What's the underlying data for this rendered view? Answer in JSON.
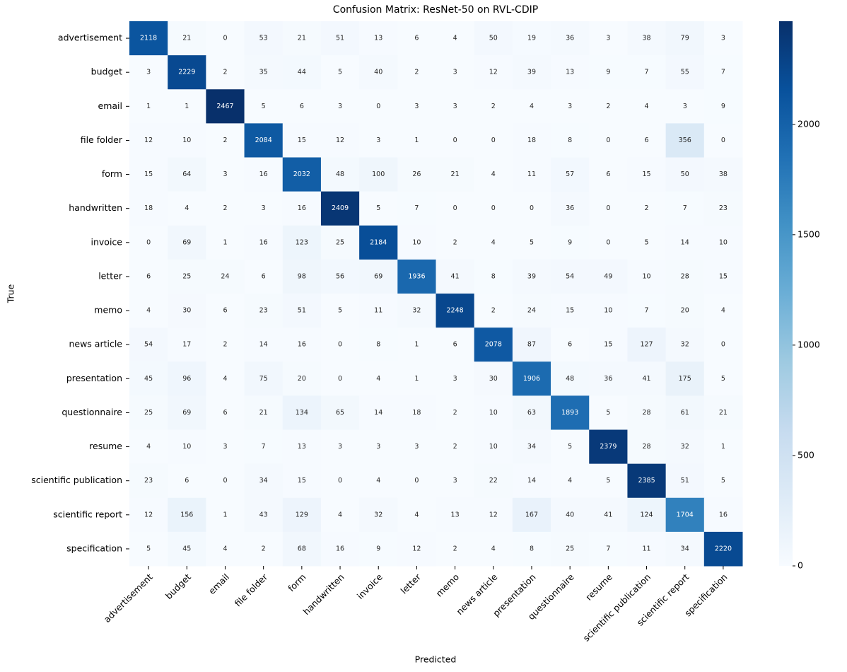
{
  "chart_data": {
    "type": "heatmap",
    "title": "Confusion Matrix: ResNet-50 on RVL-CDIP",
    "x_label": "Predicted",
    "y_label": "True",
    "categories": [
      "advertisement",
      "budget",
      "email",
      "file folder",
      "form",
      "handwritten",
      "invoice",
      "letter",
      "memo",
      "news article",
      "presentation",
      "questionnaire",
      "resume",
      "scientific publication",
      "scientific report",
      "specification"
    ],
    "values": [
      [
        2118,
        21,
        0,
        53,
        21,
        51,
        13,
        6,
        4,
        50,
        19,
        36,
        3,
        38,
        79,
        3
      ],
      [
        3,
        2229,
        2,
        35,
        44,
        5,
        40,
        2,
        3,
        12,
        39,
        13,
        9,
        7,
        55,
        7
      ],
      [
        1,
        1,
        2467,
        5,
        6,
        3,
        0,
        3,
        3,
        2,
        4,
        3,
        2,
        4,
        3,
        9
      ],
      [
        12,
        10,
        2,
        2084,
        15,
        12,
        3,
        1,
        0,
        0,
        18,
        8,
        0,
        6,
        356,
        0
      ],
      [
        15,
        64,
        3,
        16,
        2032,
        48,
        100,
        26,
        21,
        4,
        11,
        57,
        6,
        15,
        50,
        38
      ],
      [
        18,
        4,
        2,
        3,
        16,
        2409,
        5,
        7,
        0,
        0,
        0,
        36,
        0,
        2,
        7,
        23
      ],
      [
        0,
        69,
        1,
        16,
        123,
        25,
        2184,
        10,
        2,
        4,
        5,
        9,
        0,
        5,
        14,
        10
      ],
      [
        6,
        25,
        24,
        6,
        98,
        56,
        69,
        1936,
        41,
        8,
        39,
        54,
        49,
        10,
        28,
        15
      ],
      [
        4,
        30,
        6,
        23,
        51,
        5,
        11,
        32,
        2248,
        2,
        24,
        15,
        10,
        7,
        20,
        4
      ],
      [
        54,
        17,
        2,
        14,
        16,
        0,
        8,
        1,
        6,
        2078,
        87,
        6,
        15,
        127,
        32,
        0
      ],
      [
        45,
        96,
        4,
        75,
        20,
        0,
        4,
        1,
        3,
        30,
        1906,
        48,
        36,
        41,
        175,
        5
      ],
      [
        25,
        69,
        6,
        21,
        134,
        65,
        14,
        18,
        2,
        10,
        63,
        1893,
        5,
        28,
        61,
        21
      ],
      [
        4,
        10,
        3,
        7,
        13,
        3,
        3,
        3,
        2,
        10,
        34,
        5,
        2379,
        28,
        32,
        1
      ],
      [
        23,
        6,
        0,
        34,
        15,
        0,
        4,
        0,
        3,
        22,
        14,
        4,
        5,
        2385,
        51,
        5
      ],
      [
        12,
        156,
        1,
        43,
        129,
        4,
        32,
        4,
        13,
        12,
        167,
        40,
        41,
        124,
        1704,
        16
      ],
      [
        5,
        45,
        4,
        2,
        68,
        16,
        9,
        12,
        2,
        4,
        8,
        25,
        7,
        11,
        34,
        2220
      ]
    ],
    "colormap": "Blues",
    "clim": [
      0,
      2467
    ],
    "cticks": [
      0,
      500,
      1000,
      1500,
      2000
    ]
  }
}
